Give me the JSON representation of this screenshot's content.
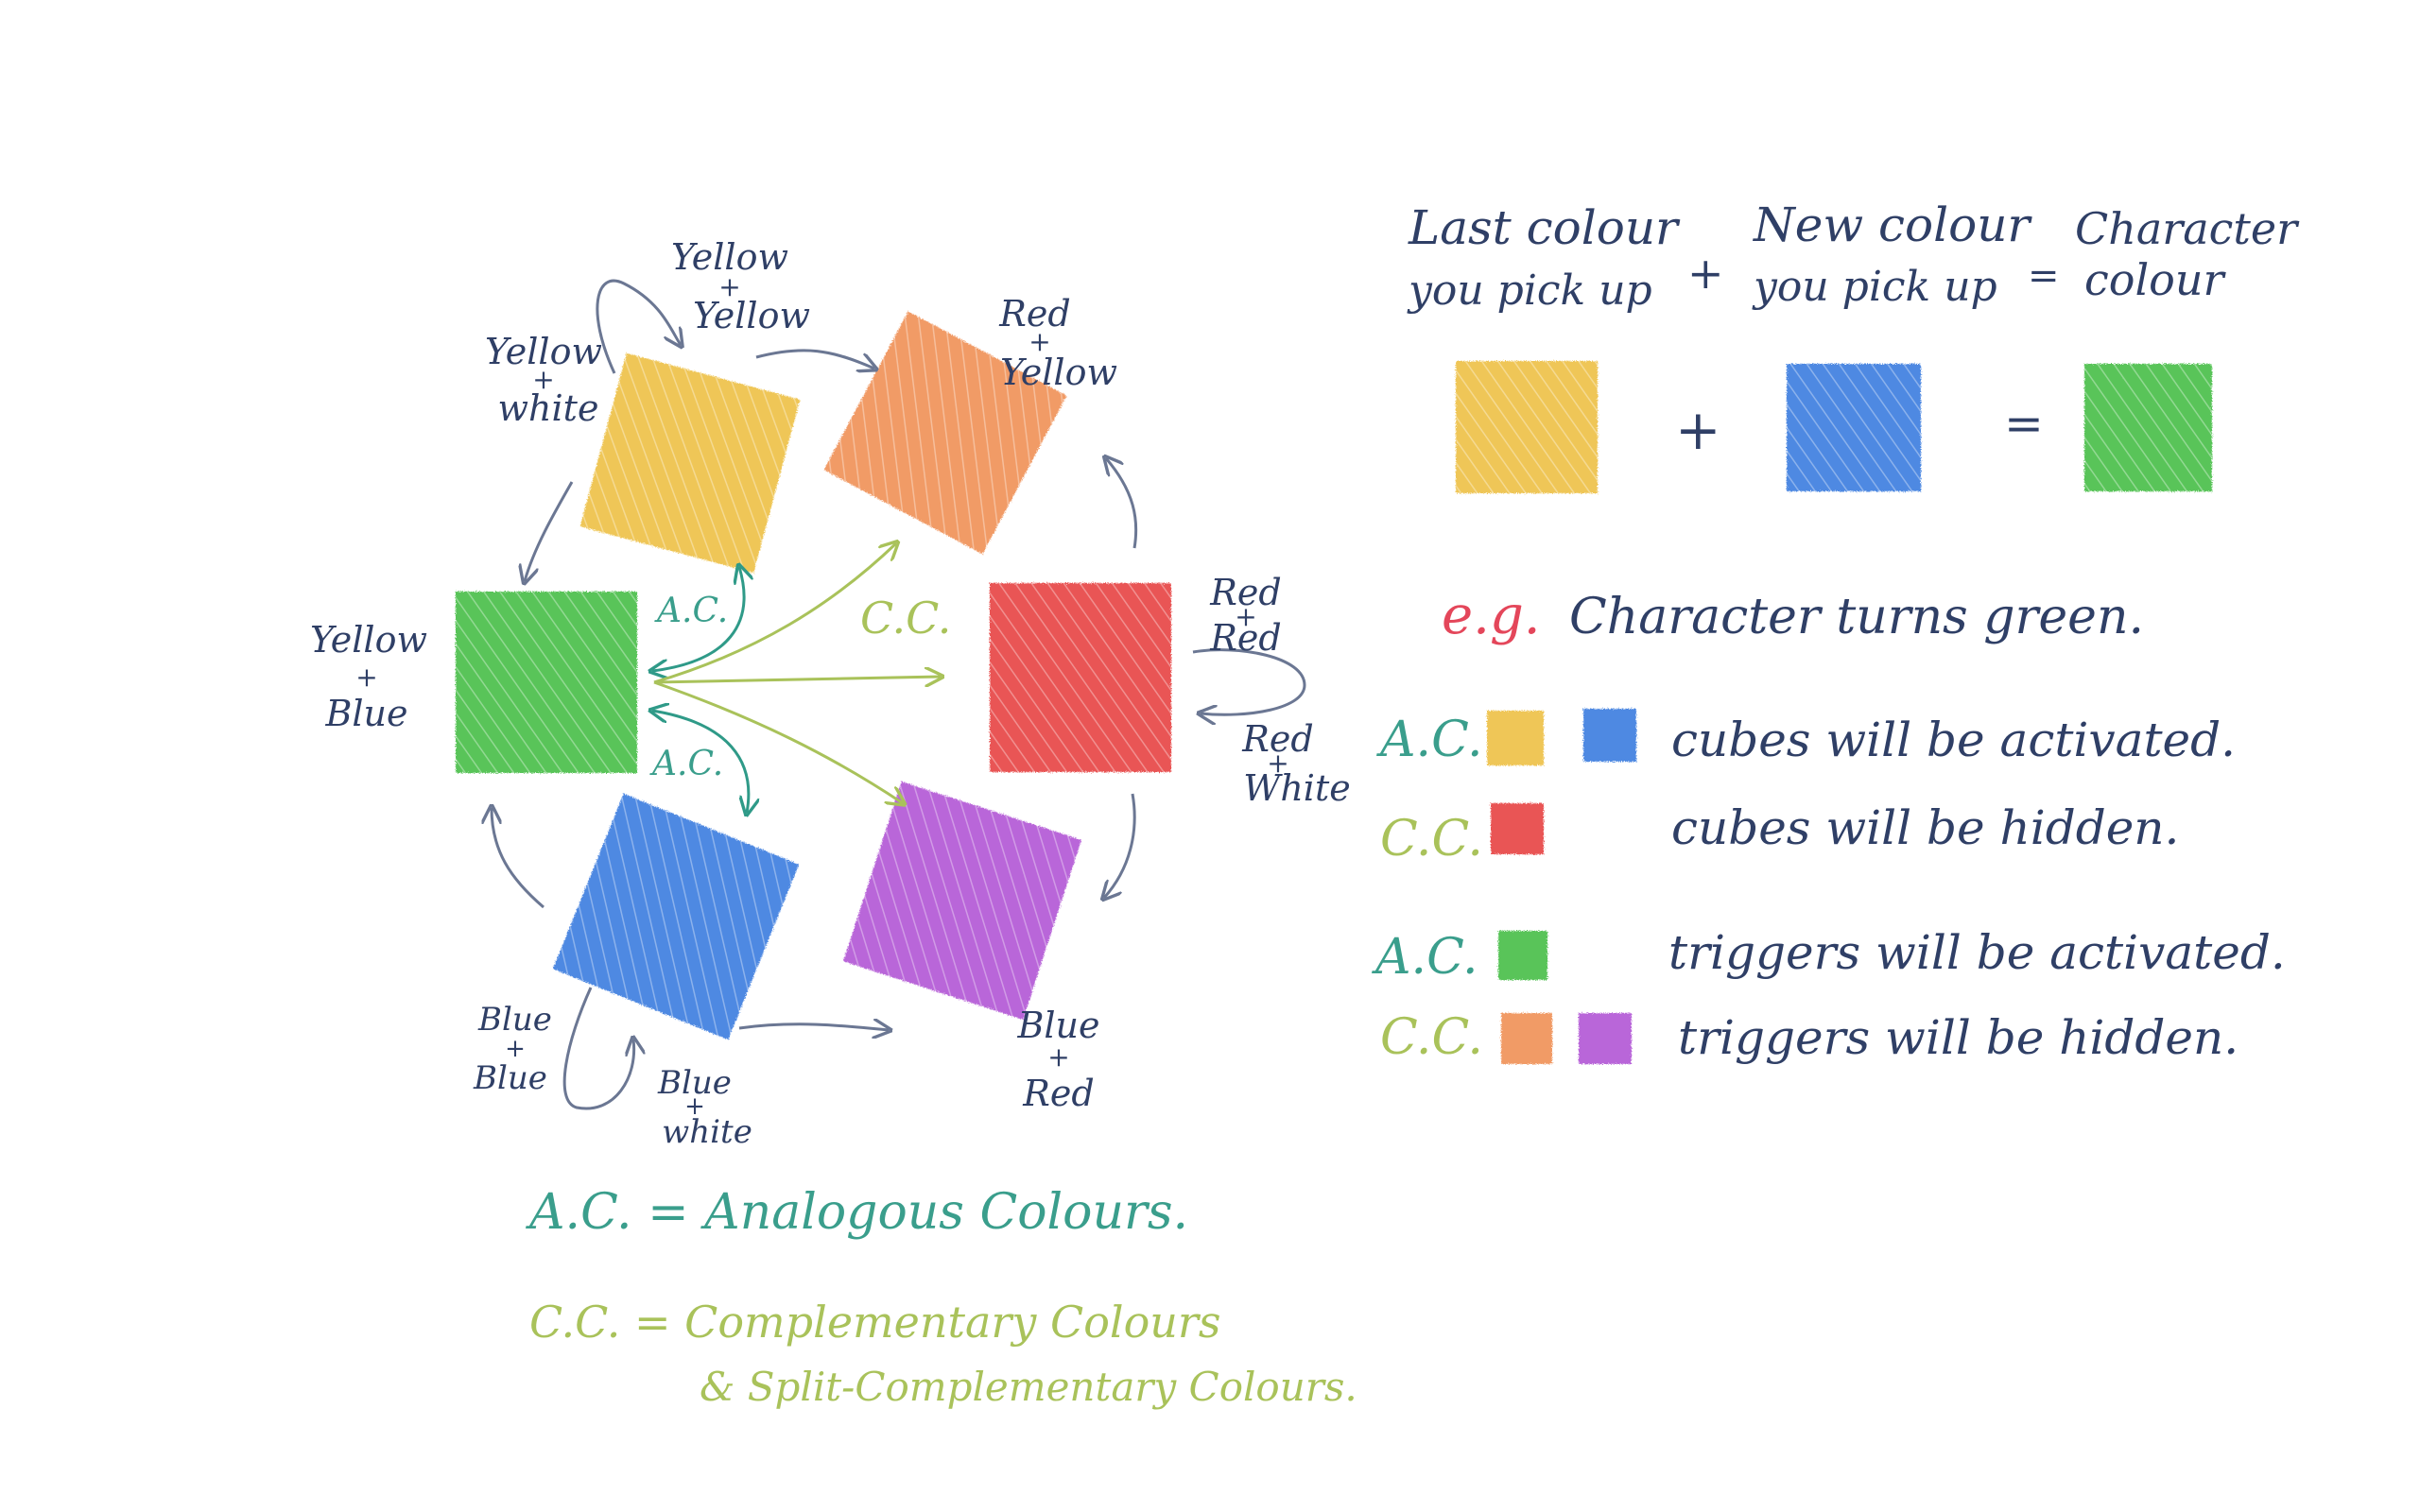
{
  "colors": {
    "yellow": "#eec24a",
    "orange": "#f0935a",
    "red": "#e84646",
    "purple": "#b45ad6",
    "blue": "#3f7fe0",
    "green": "#4cbf4c",
    "ink": "#2f3f66",
    "analogous": "#3a9e8c",
    "complementary": "#a9c25a",
    "eg": "#e4465a"
  },
  "wheel": {
    "yellow_yellow": [
      "Yellow",
      "+",
      "Yellow"
    ],
    "yellow_white": [
      "Yellow",
      "+",
      "white"
    ],
    "red_yellow": [
      "Red",
      "+",
      "Yellow"
    ],
    "yellow_blue": [
      "Yellow",
      "+",
      "Blue"
    ],
    "red_red": [
      "Red",
      "+",
      "Red"
    ],
    "red_white": [
      "Red",
      "+",
      "White"
    ],
    "blue_blue": [
      "Blue",
      "+",
      "Blue"
    ],
    "blue_white": [
      "Blue",
      "+",
      "white"
    ],
    "blue_red": [
      "Blue",
      "+",
      "Red"
    ],
    "ac_upper": "A.C.",
    "ac_lower": "A.C.",
    "cc_center": "C.C."
  },
  "legend": {
    "ac": "A.C. = Analogous Colours.",
    "cc_line1": "C.C. = Complementary Colours",
    "cc_line2": "& Split-Complementary Colours."
  },
  "formula": {
    "last_line1": "Last colour",
    "last_line2": "you pick up",
    "plus_header": "+",
    "new_line1": "New colour",
    "new_line2": "you pick up",
    "equals_header": "=",
    "char_line1": "Character",
    "char_line2": "colour",
    "plus_swatch": "+",
    "equals_swatch": "="
  },
  "example": {
    "eg": "e.g.",
    "text": "Character turns green."
  },
  "rules": {
    "r1_label": "A.C.",
    "r1_text": "cubes will be activated.",
    "r2_label": "C.C.",
    "r2_text": "cubes will be hidden.",
    "r3_label": "A.C.",
    "r3_text": "triggers will be activated.",
    "r4_label": "C.C.",
    "r4_text": "triggers will be hidden."
  }
}
